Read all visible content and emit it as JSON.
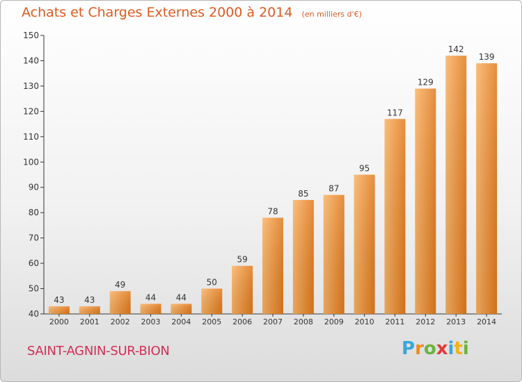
{
  "header": {
    "title": "Achats et Charges Externes 2000 à 2014",
    "unit": "(en milliers d'€)"
  },
  "footer": {
    "commune": "SAINT-AGNIN-SUR-BION",
    "logo": "Proxiti"
  },
  "colors": {
    "accent": "#dd5a20",
    "bar_light": "#f7a650",
    "bar_dark": "#e0781a",
    "commune": "#d12e55"
  },
  "chart_data": {
    "type": "bar",
    "title": "Achats et Charges Externes 2000 à 2014",
    "subtitle": "(en milliers d'€)",
    "xlabel": "",
    "ylabel": "",
    "categories": [
      "2000",
      "2001",
      "2002",
      "2003",
      "2004",
      "2005",
      "2006",
      "2007",
      "2008",
      "2009",
      "2010",
      "2011",
      "2012",
      "2013",
      "2014"
    ],
    "values": [
      43,
      43,
      49,
      44,
      44,
      50,
      59,
      78,
      85,
      87,
      95,
      117,
      129,
      142,
      139
    ],
    "ylim": [
      40,
      150
    ],
    "yticks": [
      40,
      50,
      60,
      70,
      80,
      90,
      100,
      110,
      120,
      130,
      140,
      150
    ],
    "grid": false,
    "legend": "none"
  }
}
